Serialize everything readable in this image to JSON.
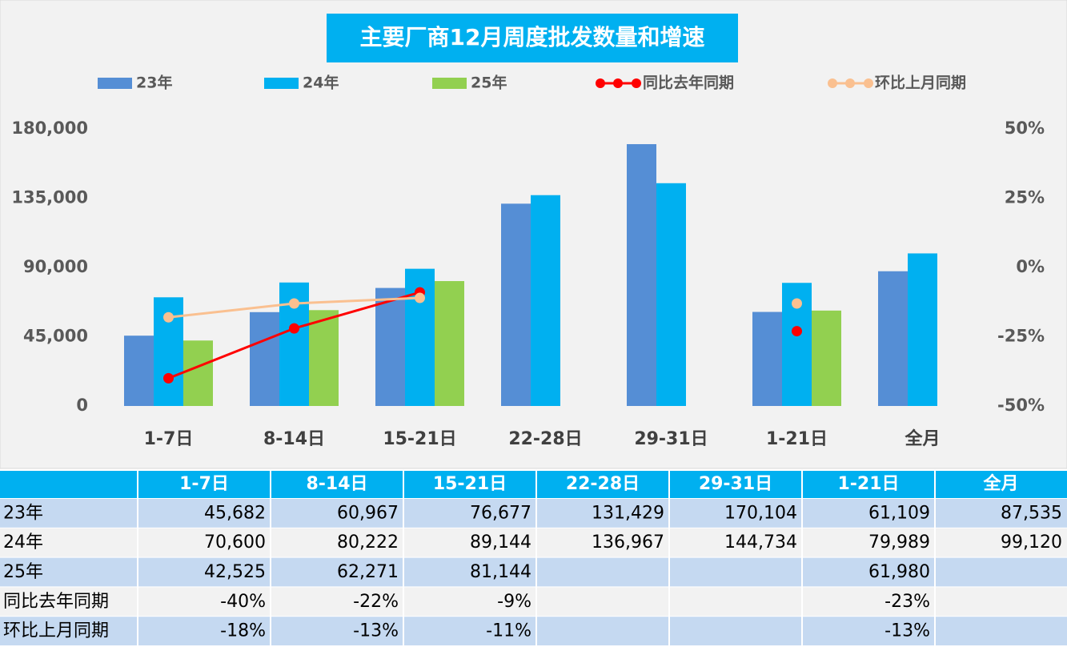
{
  "chart_data": {
    "type": "bar",
    "title": "主要厂商12月周度批发数量和增速",
    "categories": [
      "1-7日",
      "8-14日",
      "15-21日",
      "22-28日",
      "29-31日",
      "1-21日",
      "全月"
    ],
    "series": [
      {
        "name": "23年",
        "type": "bar",
        "color": "#558ed5",
        "values": [
          45682,
          60967,
          76677,
          131429,
          170104,
          61109,
          87535
        ],
        "value_labels": [
          "45,682",
          "60,967",
          "76,677",
          "131,429",
          "170,104",
          "61,109",
          "87,535"
        ]
      },
      {
        "name": "24年",
        "type": "bar",
        "color": "#00b0f0",
        "values": [
          70600,
          80222,
          89144,
          136967,
          144734,
          79989,
          99120
        ],
        "value_labels": [
          "70,600",
          "80,222",
          "89,144",
          "136,967",
          "144,734",
          "79,989",
          "99,120"
        ]
      },
      {
        "name": "25年",
        "type": "bar",
        "color": "#92d050",
        "values": [
          42525,
          62271,
          81144,
          null,
          null,
          61980,
          null
        ],
        "value_labels": [
          "42,525",
          "62,271",
          "81,144",
          null,
          null,
          "61,980",
          null
        ]
      },
      {
        "name": "同比去年同期",
        "type": "line",
        "axis": "y2",
        "color": "#ff0000",
        "values": [
          -40,
          -22,
          -9,
          null,
          null,
          -23,
          null
        ],
        "value_labels": [
          "-40%",
          "-22%",
          "-9%",
          null,
          null,
          "-23%",
          null
        ]
      },
      {
        "name": "环比上月同期",
        "type": "line",
        "axis": "y2",
        "color": "#fac090",
        "values": [
          -18,
          -13,
          -11,
          null,
          null,
          -13,
          null
        ],
        "value_labels": [
          "-18%",
          "-13%",
          "-11%",
          null,
          null,
          "-13%",
          null
        ]
      }
    ],
    "ylim": [
      0,
      180000
    ],
    "yticks": [
      0,
      {
        "value": 45000,
        "label": "45,000"
      },
      {
        "value": 90000,
        "label": "90,000"
      },
      {
        "value": 135000,
        "label": "135,000"
      },
      {
        "value": 180000,
        "label": "180,000"
      }
    ],
    "y2lim": [
      -50,
      50
    ],
    "y2ticks": [
      {
        "value": -50,
        "label": "-50%"
      },
      {
        "value": -25,
        "label": "-25%"
      },
      {
        "value": 0,
        "label": "0%"
      },
      {
        "value": 25,
        "label": "25%"
      },
      {
        "value": 50,
        "label": "50%"
      }
    ],
    "grid": false,
    "legend": "top"
  }
}
